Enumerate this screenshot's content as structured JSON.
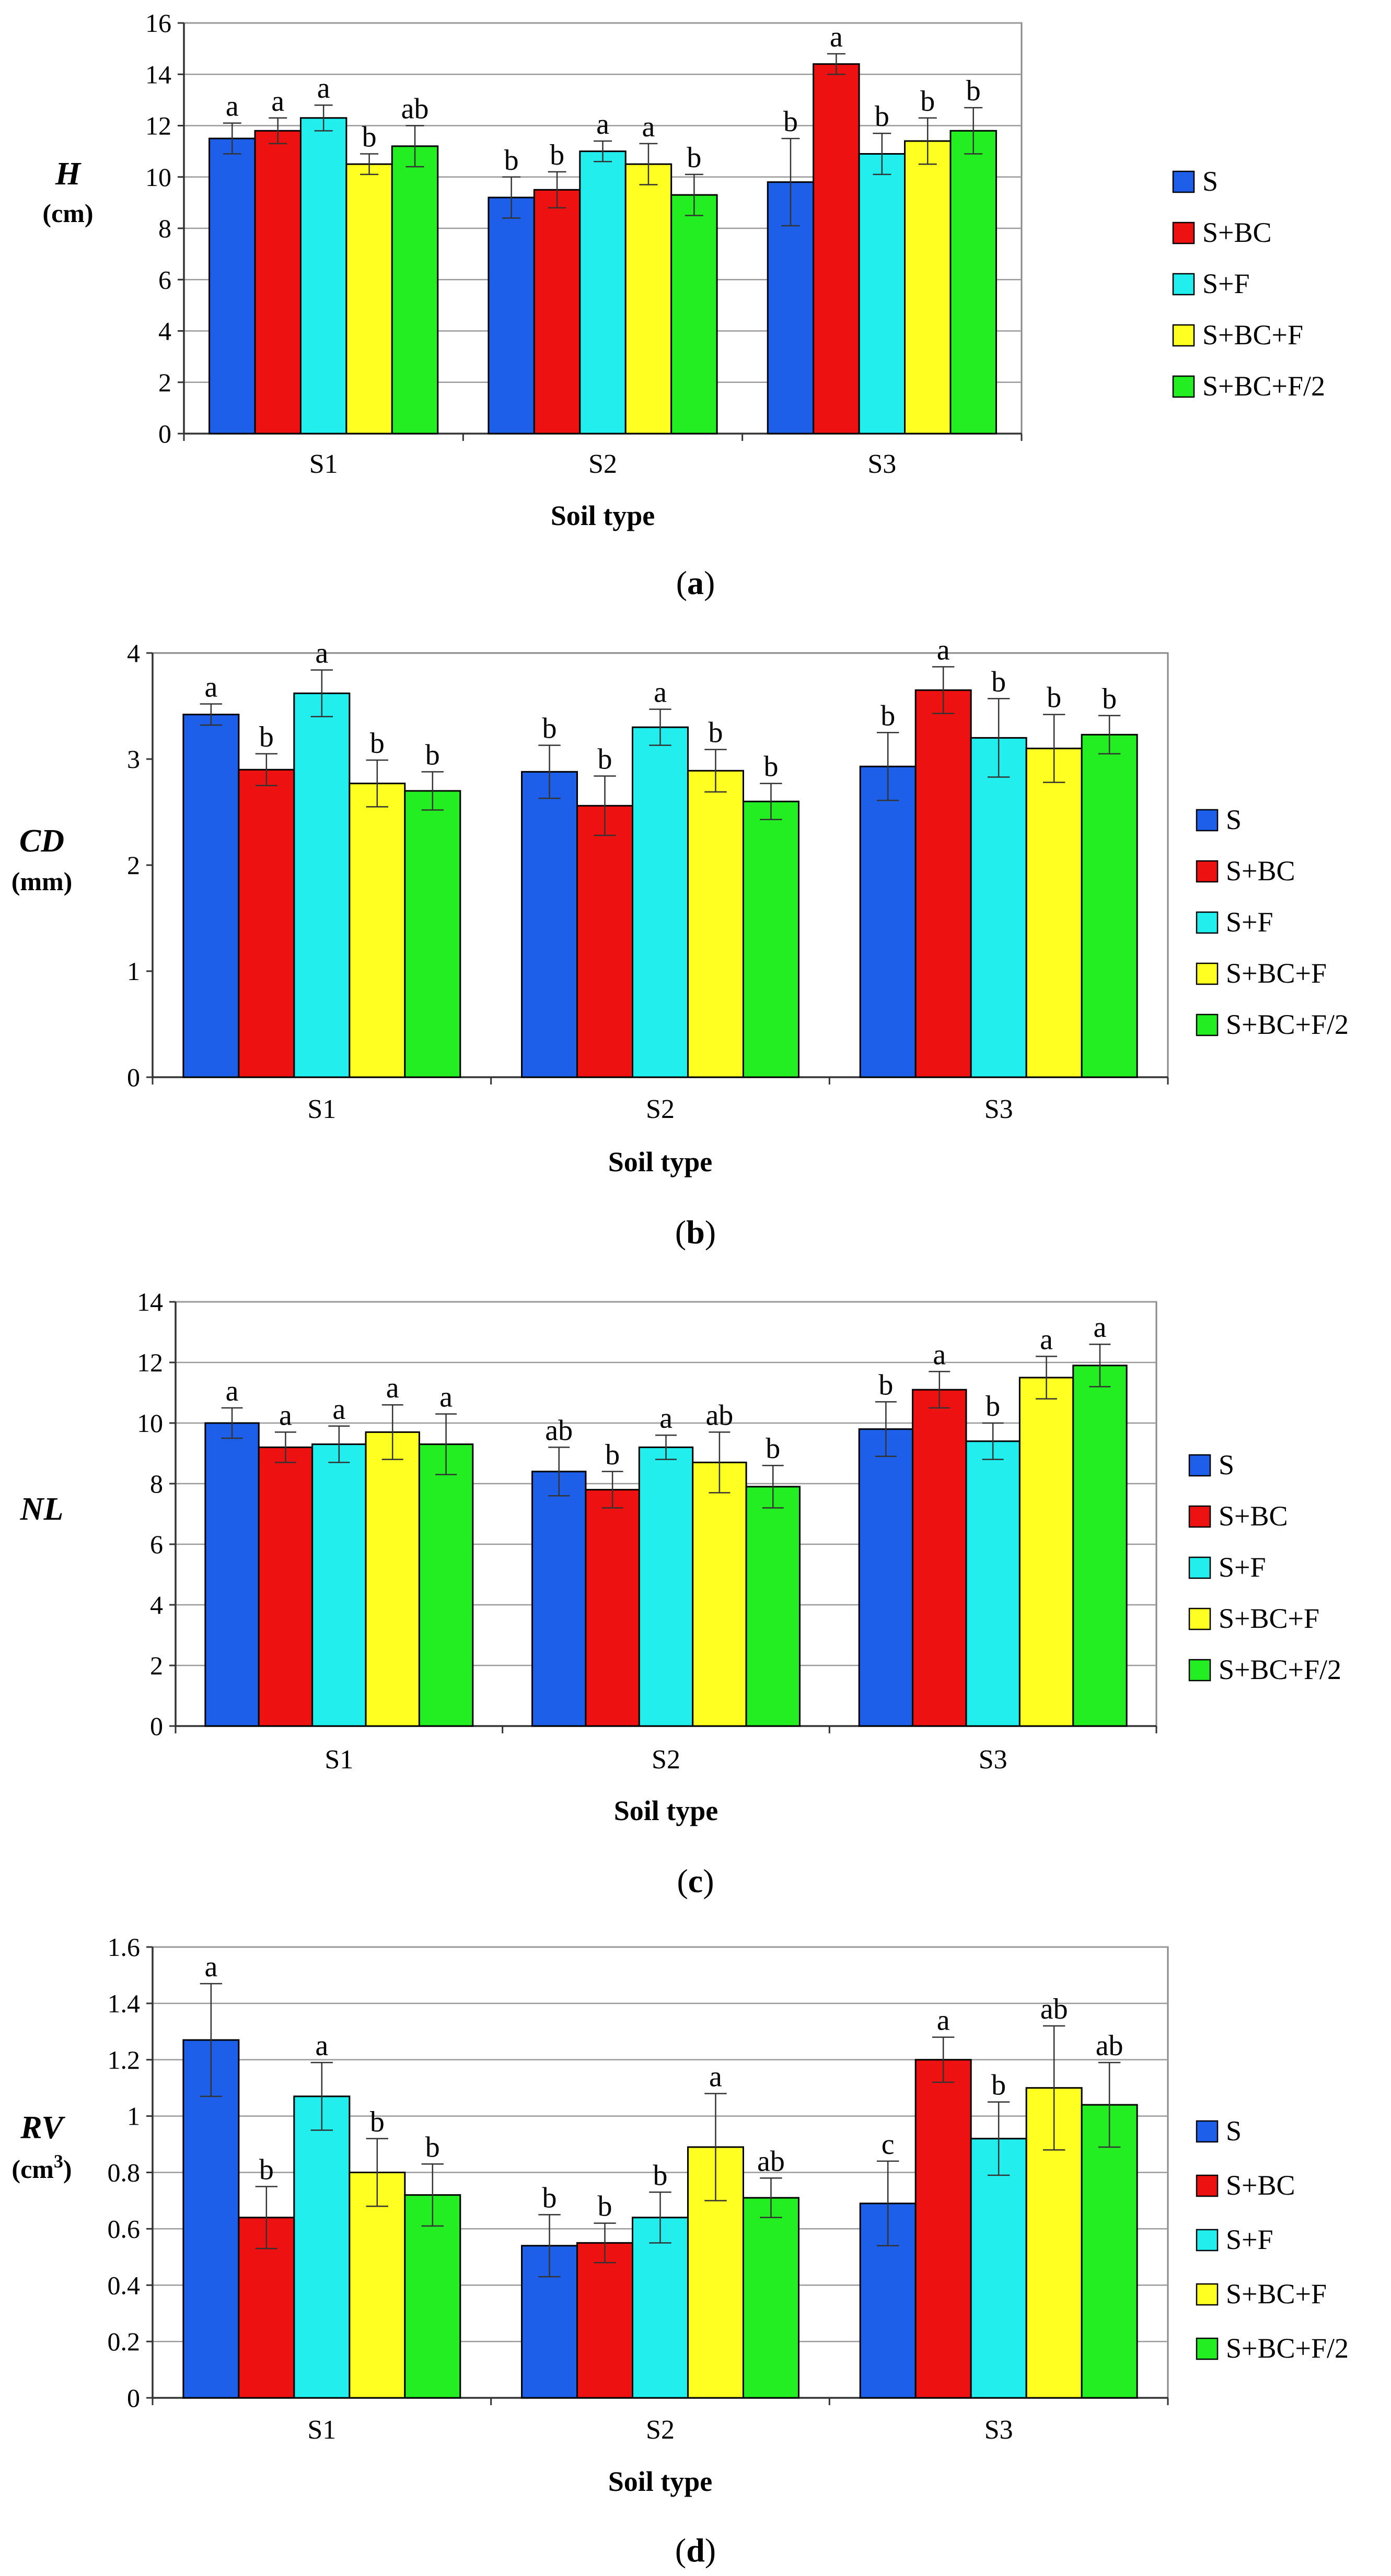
{
  "legend_entries": [
    "S",
    "S+BC",
    "S+F",
    "S+BC+F",
    "S+BC+F/2"
  ],
  "series_colors": [
    "#1d5fe8",
    "#ee1111",
    "#22eeee",
    "#ffff22",
    "#22ee22"
  ],
  "chart_data": [
    {
      "type": "bar",
      "panel_label": "a",
      "ylabel_main": "H",
      "ylabel_unit": "(cm)",
      "xlabel": "Soil type",
      "categories": [
        "S1",
        "S2",
        "S3"
      ],
      "ylim": [
        0,
        16
      ],
      "yticks": [
        "0",
        "2",
        "4",
        "6",
        "8",
        "10",
        "12",
        "14",
        "16"
      ],
      "grid": true,
      "legend_position": "right",
      "series": [
        {
          "name": "S",
          "values": [
            11.5,
            9.2,
            9.8
          ],
          "errors": [
            0.6,
            0.8,
            1.7
          ],
          "letters": [
            "a",
            "b",
            "b"
          ]
        },
        {
          "name": "S+BC",
          "values": [
            11.8,
            9.5,
            14.4
          ],
          "errors": [
            0.5,
            0.7,
            0.4
          ],
          "letters": [
            "a",
            "b",
            "a"
          ]
        },
        {
          "name": "S+F",
          "values": [
            12.3,
            11.0,
            10.9
          ],
          "errors": [
            0.5,
            0.4,
            0.8
          ],
          "letters": [
            "a",
            "a",
            "b"
          ]
        },
        {
          "name": "S+BC+F",
          "values": [
            10.5,
            10.5,
            11.4
          ],
          "errors": [
            0.4,
            0.8,
            0.9
          ],
          "letters": [
            "b",
            "a",
            "b"
          ]
        },
        {
          "name": "S+BC+F/2",
          "values": [
            11.2,
            9.3,
            11.8
          ],
          "errors": [
            0.8,
            0.8,
            0.9
          ],
          "letters": [
            "ab",
            "b",
            "b"
          ]
        }
      ]
    },
    {
      "type": "bar",
      "panel_label": "b",
      "ylabel_main": "CD",
      "ylabel_unit": "(mm)",
      "xlabel": "Soil type",
      "categories": [
        "S1",
        "S2",
        "S3"
      ],
      "ylim": [
        0,
        4
      ],
      "yticks": [
        "0",
        "1",
        "2",
        "3",
        "4"
      ],
      "grid": false,
      "legend_position": "right",
      "series": [
        {
          "name": "S",
          "values": [
            3.42,
            2.88,
            2.93
          ],
          "errors": [
            0.1,
            0.25,
            0.32
          ],
          "letters": [
            "a",
            "b",
            "b"
          ]
        },
        {
          "name": "S+BC",
          "values": [
            2.9,
            2.56,
            3.65
          ],
          "errors": [
            0.15,
            0.28,
            0.22
          ],
          "letters": [
            "b",
            "b",
            "a"
          ]
        },
        {
          "name": "S+F",
          "values": [
            3.62,
            3.3,
            3.2
          ],
          "errors": [
            0.22,
            0.17,
            0.37
          ],
          "letters": [
            "a",
            "a",
            "b"
          ]
        },
        {
          "name": "S+BC+F",
          "values": [
            2.77,
            2.89,
            3.1
          ],
          "errors": [
            0.22,
            0.2,
            0.32
          ],
          "letters": [
            "b",
            "b",
            "b"
          ]
        },
        {
          "name": "S+BC+F/2",
          "values": [
            2.7,
            2.6,
            3.23
          ],
          "errors": [
            0.18,
            0.17,
            0.18
          ],
          "letters": [
            "b",
            "b",
            "b"
          ]
        }
      ]
    },
    {
      "type": "bar",
      "panel_label": "c",
      "ylabel_main": "NL",
      "ylabel_unit": "",
      "xlabel": "Soil type",
      "categories": [
        "S1",
        "S2",
        "S3"
      ],
      "ylim": [
        0,
        14
      ],
      "yticks": [
        "0",
        "2",
        "4",
        "6",
        "8",
        "10",
        "12",
        "14"
      ],
      "grid": true,
      "legend_position": "right",
      "series": [
        {
          "name": "S",
          "values": [
            10.0,
            8.4,
            9.8
          ],
          "errors": [
            0.5,
            0.8,
            0.9
          ],
          "letters": [
            "a",
            "ab",
            "b"
          ]
        },
        {
          "name": "S+BC",
          "values": [
            9.2,
            7.8,
            11.1
          ],
          "errors": [
            0.5,
            0.6,
            0.6
          ],
          "letters": [
            "a",
            "b",
            "a"
          ]
        },
        {
          "name": "S+F",
          "values": [
            9.3,
            9.2,
            9.4
          ],
          "errors": [
            0.6,
            0.4,
            0.6
          ],
          "letters": [
            "a",
            "a",
            "b"
          ]
        },
        {
          "name": "S+BC+F",
          "values": [
            9.7,
            8.7,
            11.5
          ],
          "errors": [
            0.9,
            1.0,
            0.7
          ],
          "letters": [
            "a",
            "ab",
            "a"
          ]
        },
        {
          "name": "S+BC+F/2",
          "values": [
            9.3,
            7.9,
            11.9
          ],
          "errors": [
            1.0,
            0.7,
            0.7
          ],
          "letters": [
            "a",
            "b",
            "a"
          ]
        }
      ]
    },
    {
      "type": "bar",
      "panel_label": "d",
      "ylabel_main": "RV",
      "ylabel_unit": "(cm",
      "ylabel_unit_sup": "3",
      "ylabel_unit_end": ")",
      "xlabel": "Soil type",
      "categories": [
        "S1",
        "S2",
        "S3"
      ],
      "ylim": [
        0,
        1.6
      ],
      "yticks": [
        "0",
        "0.2",
        "0.4",
        "0.6",
        "0.8",
        "1",
        "1.2",
        "1.4",
        "1.6"
      ],
      "grid": true,
      "legend_position": "right",
      "series": [
        {
          "name": "S",
          "values": [
            1.27,
            0.54,
            0.69
          ],
          "errors": [
            0.2,
            0.11,
            0.15
          ],
          "letters": [
            "a",
            "b",
            "c"
          ]
        },
        {
          "name": "S+BC",
          "values": [
            0.64,
            0.55,
            1.2
          ],
          "errors": [
            0.11,
            0.07,
            0.08
          ],
          "letters": [
            "b",
            "b",
            "a"
          ]
        },
        {
          "name": "S+F",
          "values": [
            1.07,
            0.64,
            0.92
          ],
          "errors": [
            0.12,
            0.09,
            0.13
          ],
          "letters": [
            "a",
            "b",
            "b"
          ]
        },
        {
          "name": "S+BC+F",
          "values": [
            0.8,
            0.89,
            1.1
          ],
          "errors": [
            0.12,
            0.19,
            0.22
          ],
          "letters": [
            "b",
            "a",
            "ab"
          ]
        },
        {
          "name": "S+BC+F/2",
          "values": [
            0.72,
            0.71,
            1.04
          ],
          "errors": [
            0.11,
            0.07,
            0.15
          ],
          "letters": [
            "b",
            "ab",
            "ab"
          ]
        }
      ]
    }
  ]
}
